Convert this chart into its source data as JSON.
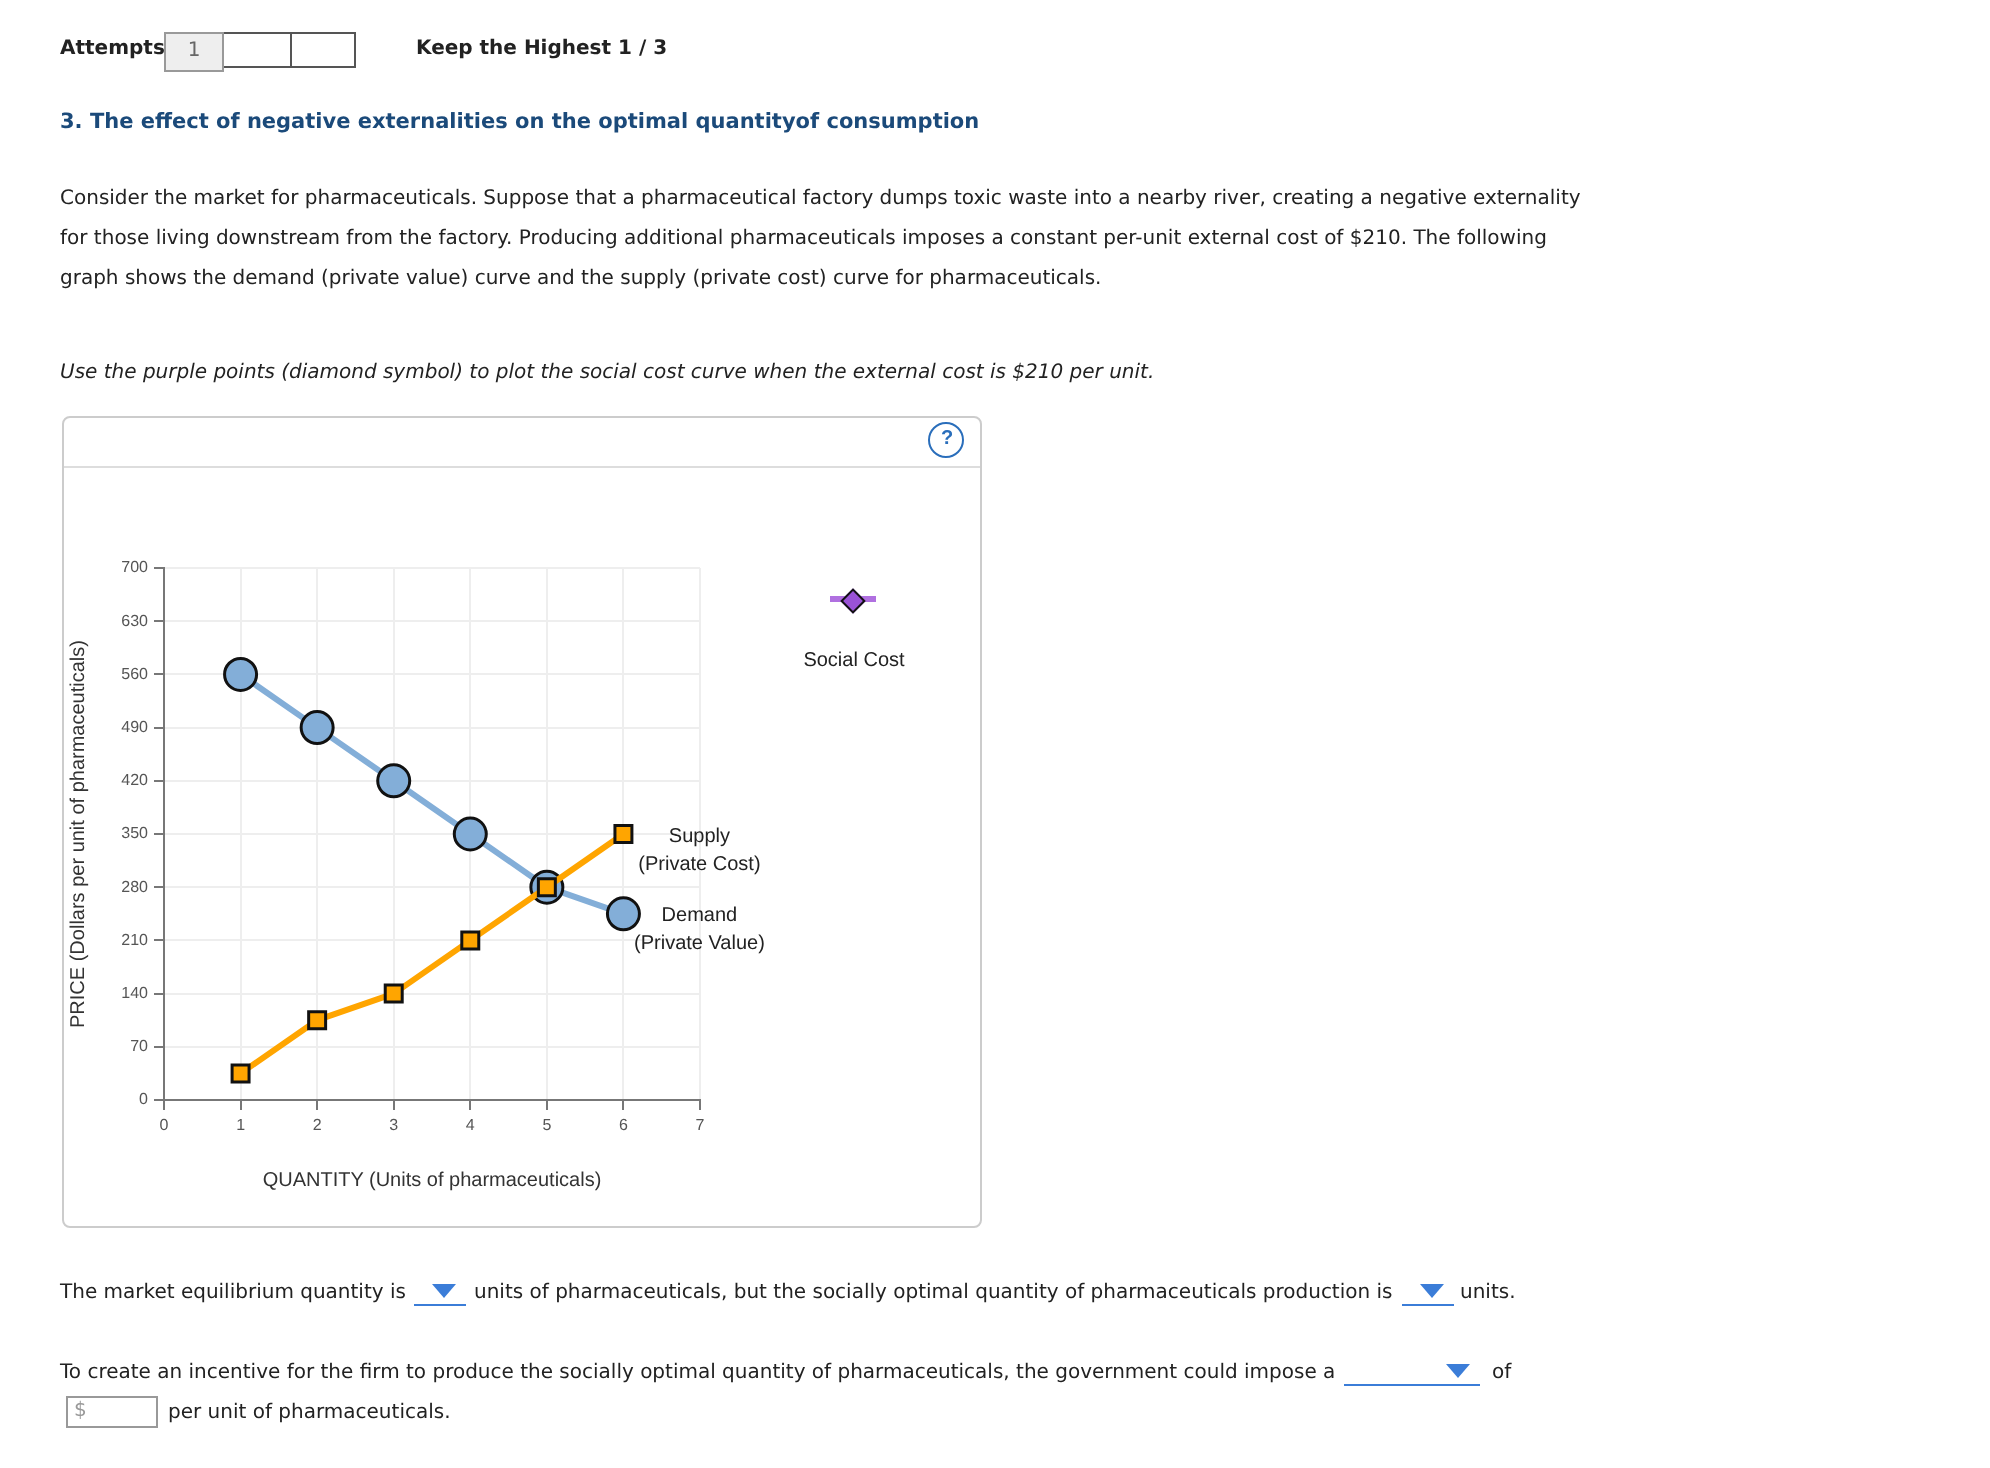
{
  "chart_data": {
    "type": "line",
    "title": "3. The effect of negative externalities on the optimal quantityof consumption",
    "xlabel": "QUANTITY (Units of pharmaceuticals)",
    "ylabel": "PRICE (Dollars per unit of pharmaceuticals)",
    "x": [
      1,
      2,
      3,
      4,
      5,
      6
    ],
    "series": [
      {
        "name": "Supply (Private Cost)",
        "color": "#ffa500",
        "marker": "square",
        "values": [
          35,
          105,
          140,
          210,
          280,
          350
        ]
      },
      {
        "name": "Demand (Private Value)",
        "color": "#83aed8",
        "marker": "circle",
        "values": [
          560,
          490,
          420,
          350,
          280,
          245
        ]
      }
    ],
    "xlim": [
      0,
      7
    ],
    "xticks": [
      0,
      1,
      2,
      3,
      4,
      5,
      6,
      7
    ],
    "ylim": [
      0,
      700
    ],
    "yticks": [
      0,
      70,
      140,
      210,
      280,
      350,
      420,
      490,
      560,
      630,
      700
    ],
    "grid": true,
    "legend": false,
    "annotations": [
      "Attempts",
      "1",
      "Keep the Highest 1 / 3",
      "Consider the market for pharmaceuticals. Suppose that a pharmaceutical factory dumps toxic waste into a nearby river, creating a negative externality for those living downstream from the factory. Producing additional pharmaceuticals imposes a constant per-unit external cost of $210. The following graph shows the demand (private value) curve and the supply (private cost) curve for pharmaceuticals.",
      "Use the purple points (diamond symbol) to plot the social cost curve when the external cost is $210 per unit.",
      "Social Cost",
      "The market equilibrium quantity is",
      "units of pharmaceuticals, but the socially optimal quantity of pharmaceuticals production is",
      "units.",
      "To create an incentive for the firm to produce the socially optimal quantity of pharmaceuticals, the government could impose a",
      "of",
      "$",
      "per unit of pharmaceuticals.",
      "?"
    ]
  }
}
